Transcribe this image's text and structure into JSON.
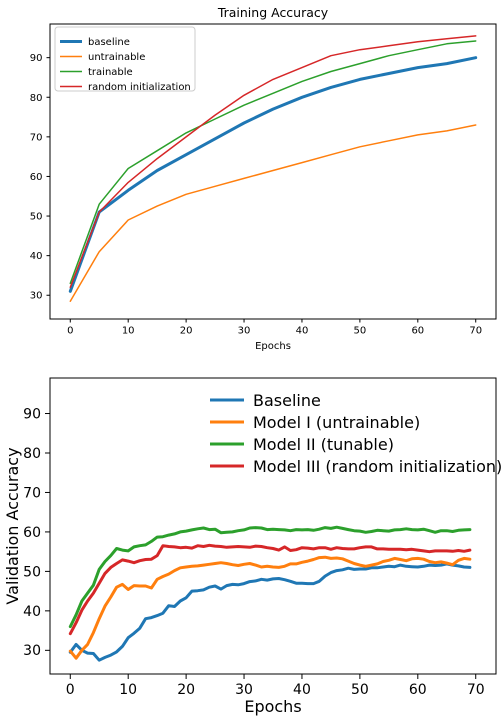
{
  "chart_data": [
    {
      "type": "line",
      "title": "Training Accuracy",
      "xlabel": "Epochs",
      "ylabel": "",
      "xlim": [
        -3.5,
        73.5
      ],
      "ylim": [
        24,
        98.5
      ],
      "xticks": [
        0,
        10,
        20,
        30,
        40,
        50,
        60,
        70
      ],
      "yticks": [
        30,
        40,
        50,
        60,
        70,
        80,
        90
      ],
      "legend_position": "upper-left",
      "grid": false,
      "x": [
        0,
        5,
        10,
        15,
        20,
        25,
        30,
        35,
        40,
        45,
        50,
        55,
        60,
        65,
        70
      ],
      "series": [
        {
          "name": "baseline",
          "color": "#1f77b4",
          "width": 3,
          "values": [
            31,
            51,
            56.5,
            61.5,
            65.5,
            69.5,
            73.5,
            77,
            80,
            82.5,
            84.5,
            86,
            87.5,
            88.5,
            90
          ]
        },
        {
          "name": "untrainable",
          "color": "#ff7f0e",
          "width": 1.5,
          "values": [
            28.5,
            41,
            49,
            52.5,
            55.5,
            57.5,
            59.5,
            61.5,
            63.5,
            65.5,
            67.5,
            69,
            70.5,
            71.5,
            73
          ]
        },
        {
          "name": "trainable",
          "color": "#2ca02c",
          "width": 1.5,
          "values": [
            33,
            53,
            62,
            66.5,
            71,
            74.5,
            78,
            81,
            84,
            86.5,
            88.5,
            90.5,
            92,
            93.5,
            94.2
          ]
        },
        {
          "name": "random initialization",
          "color": "#d62728",
          "width": 1.5,
          "values": [
            32,
            51,
            58.5,
            64.5,
            70,
            75.5,
            80.5,
            84.5,
            87.5,
            90.5,
            92,
            93,
            94,
            94.8,
            95.5
          ]
        }
      ]
    },
    {
      "type": "line",
      "title": "",
      "xlabel": "Epochs",
      "ylabel": "Validation Accuracy",
      "xlim": [
        -3.5,
        73.5
      ],
      "ylim": [
        24,
        99
      ],
      "xticks": [
        0,
        10,
        20,
        30,
        40,
        50,
        60,
        70
      ],
      "yticks": [
        30,
        40,
        50,
        60,
        70,
        80,
        90
      ],
      "legend_position": "upper-center",
      "grid": false,
      "x": [
        0,
        1,
        2,
        3,
        4,
        5,
        6,
        7,
        8,
        9,
        10,
        11,
        12,
        13,
        14,
        15,
        16,
        17,
        18,
        19,
        20,
        21,
        22,
        23,
        24,
        25,
        26,
        27,
        28,
        29,
        30,
        31,
        32,
        33,
        34,
        35,
        36,
        37,
        38,
        39,
        40,
        41,
        42,
        43,
        44,
        45,
        46,
        47,
        48,
        49,
        50,
        51,
        52,
        53,
        54,
        55,
        56,
        57,
        58,
        59,
        60,
        61,
        62,
        63,
        64,
        65,
        66,
        67,
        68,
        69
      ],
      "series": [
        {
          "name": "Baseline",
          "color": "#1f77b4",
          "width": 3,
          "values": [
            29.5,
            31.5,
            30,
            29.3,
            29.2,
            27.5,
            28.2,
            28.8,
            29.6,
            31,
            33.2,
            34.3,
            35.6,
            38,
            38.3,
            38.8,
            39.4,
            41.3,
            41.1,
            42.5,
            43.3,
            45,
            45.1,
            45.3,
            46,
            46.3,
            45.5,
            46.4,
            46.7,
            46.6,
            46.9,
            47.4,
            47.6,
            48,
            47.8,
            48.1,
            48.2,
            47.9,
            47.5,
            47,
            47,
            46.9,
            46.9,
            47.5,
            48.8,
            49.7,
            50.2,
            50.4,
            50.8,
            50.5,
            50.6,
            50.6,
            50.9,
            50.9,
            51.1,
            51.3,
            51.2,
            51.6,
            51.3,
            51.2,
            51.1,
            51.3,
            51.6,
            51.5,
            51.6,
            51.9,
            51.6,
            51.4,
            51.1,
            51
          ]
        },
        {
          "name": "Model I (untrainable)",
          "color": "#ff7f0e",
          "width": 3,
          "values": [
            29.8,
            28,
            30,
            31.5,
            34.5,
            38,
            41.2,
            43.5,
            46,
            46.7,
            45.4,
            46.4,
            46.3,
            46.3,
            45.8,
            48,
            48.7,
            49.3,
            50.2,
            50.9,
            51.1,
            51.3,
            51.4,
            51.6,
            51.8,
            52,
            52.2,
            52,
            51.7,
            51.5,
            51.8,
            52,
            51.6,
            51.1,
            51.3,
            51.1,
            51,
            51.3,
            51.9,
            51.9,
            52.3,
            52.6,
            53,
            53.5,
            53.6,
            53.3,
            53.4,
            53.2,
            52.6,
            52,
            51.6,
            51.3,
            51.6,
            51.9,
            52.5,
            52.8,
            53.3,
            53,
            52.7,
            53.2,
            53.3,
            53.1,
            52.5,
            52.2,
            52.4,
            52.1,
            51.7,
            52.8,
            53.3,
            53.1
          ]
        },
        {
          "name": "Model II (tunable)",
          "color": "#2ca02c",
          "width": 3,
          "values": [
            36,
            39,
            42.5,
            44.5,
            46.5,
            50.5,
            52.5,
            54,
            55.8,
            55.4,
            55.2,
            56.2,
            56.5,
            56.7,
            57.6,
            58.7,
            58.8,
            59.2,
            59.5,
            60,
            60.2,
            60.5,
            60.8,
            61,
            60.6,
            60.7,
            59.8,
            59.9,
            60,
            60.3,
            60.5,
            61,
            61.1,
            61,
            60.6,
            60.7,
            60.6,
            60.5,
            60.3,
            60.6,
            60.5,
            60.6,
            60.4,
            60.7,
            61.1,
            60.9,
            61.2,
            60.9,
            60.6,
            60.3,
            60.2,
            59.9,
            60.1,
            60.4,
            60.3,
            60.2,
            60.5,
            60.6,
            60.8,
            60.6,
            60.5,
            60.7,
            60.3,
            59.9,
            60.3,
            60.3,
            60.1,
            60.4,
            60.5,
            60.6
          ]
        },
        {
          "name": "Model III (random initialization)",
          "color": "#d62728",
          "width": 3,
          "values": [
            34.2,
            37,
            40.2,
            42.5,
            44.5,
            47,
            49.5,
            51,
            52,
            52.9,
            52.6,
            52.2,
            52.7,
            53,
            53.1,
            54,
            56.5,
            56.3,
            56.2,
            56,
            56.1,
            55.9,
            56.5,
            56.3,
            56.6,
            56.4,
            56.3,
            56.1,
            56.2,
            56.3,
            56.2,
            56.1,
            56.4,
            56.3,
            56,
            55.8,
            55.4,
            56.2,
            55.3,
            55.5,
            56,
            55.9,
            55.7,
            56,
            56,
            55.6,
            56,
            55.8,
            55.7,
            55.7,
            56,
            56.2,
            56.2,
            55.7,
            55.7,
            55.6,
            55.6,
            55.6,
            55.5,
            55.6,
            55.4,
            55.2,
            55,
            55.2,
            55.2,
            55.2,
            55.1,
            55.3,
            55.1,
            55.4
          ]
        }
      ]
    }
  ]
}
